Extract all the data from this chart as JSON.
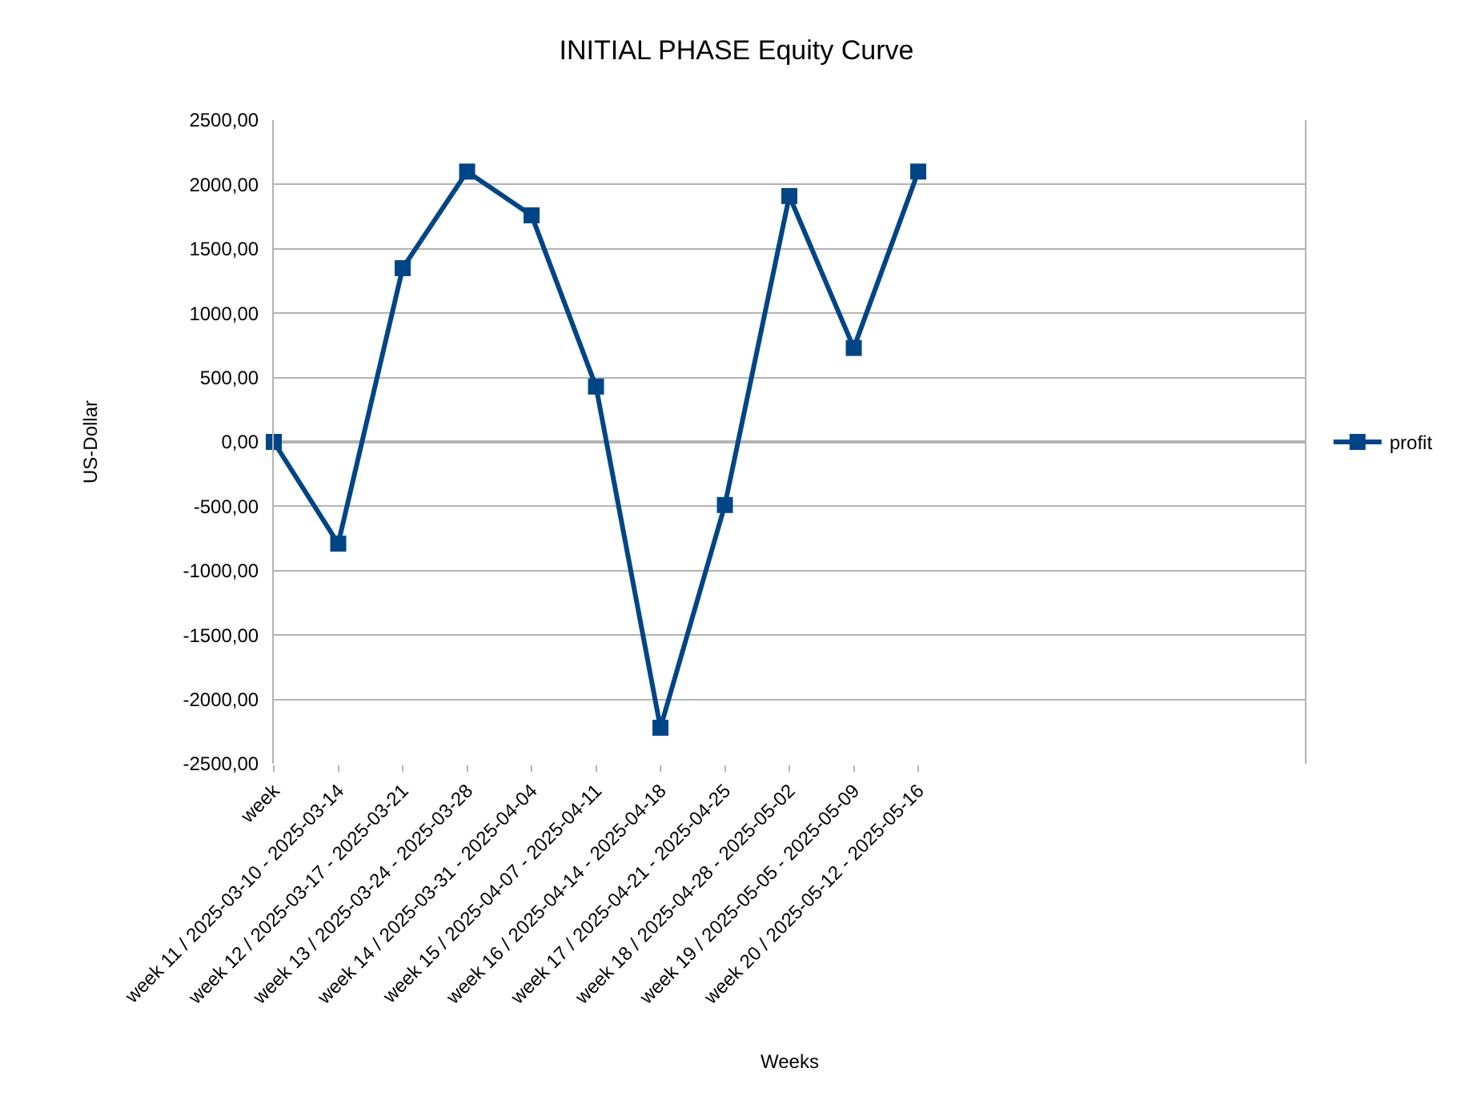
{
  "chart_data": {
    "type": "line",
    "title": "INITIAL PHASE Equity Curve",
    "xlabel": "Weeks",
    "ylabel": "US-Dollar",
    "categories": [
      "week",
      "week 11 / 2025-03-10 - 2025-03-14",
      "week 12 / 2025-03-17 - 2025-03-21",
      "week 13 / 2025-03-24 - 2025-03-28",
      "week 14 / 2025-03-31 - 2025-04-04",
      "week 15 / 2025-04-07 - 2025-04-11",
      "week 16 / 2025-04-14 - 2025-04-18",
      "week 17 / 2025-04-21 - 2025-04-25",
      "week 18 / 2025-04-28 - 2025-05-02",
      "week 19 / 2025-05-05 - 2025-05-09",
      "week 20 / 2025-05-12 - 2025-05-16",
      null,
      null,
      null,
      null,
      null,
      null
    ],
    "series": [
      {
        "name": "profit",
        "color": "#004586",
        "values": [
          0,
          -790,
          1350,
          2100,
          1760,
          430,
          -2220,
          -490,
          1910,
          730,
          2100,
          null,
          null,
          null,
          null,
          null,
          null
        ]
      }
    ],
    "ylim": [
      -2500,
      2500
    ],
    "yticks": [
      {
        "value": -2500,
        "label": "-2500,00"
      },
      {
        "value": -2000,
        "label": "-2000,00"
      },
      {
        "value": -1500,
        "label": "-1500,00"
      },
      {
        "value": -1000,
        "label": "-1000,00"
      },
      {
        "value": -500,
        "label": "-500,00"
      },
      {
        "value": 0,
        "label": "0,00"
      },
      {
        "value": 500,
        "label": "500,00"
      },
      {
        "value": 1000,
        "label": "1000,00"
      },
      {
        "value": 1500,
        "label": "1500,00"
      },
      {
        "value": 2000,
        "label": "2000,00"
      },
      {
        "value": 2500,
        "label": "2500,00"
      }
    ],
    "grid": "y",
    "legend": "right",
    "marker": "square",
    "line_style": "solid"
  }
}
